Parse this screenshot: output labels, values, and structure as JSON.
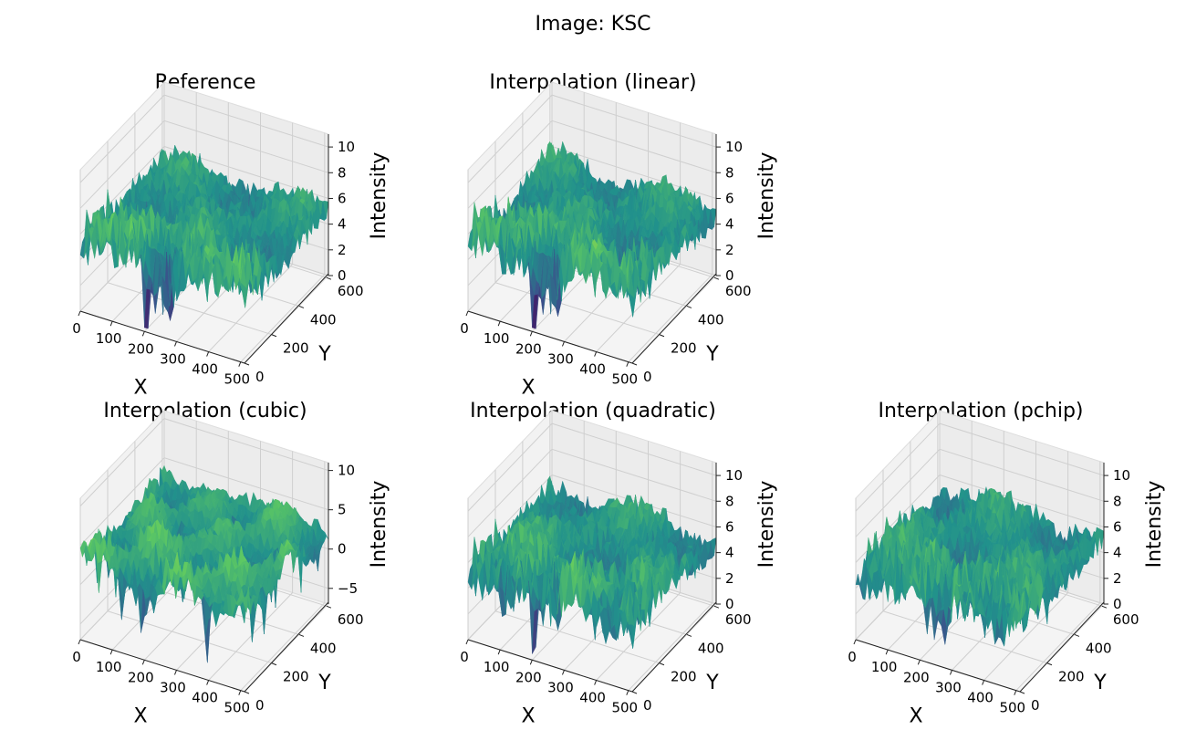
{
  "suptitle": "Image: KSC",
  "colormap": [
    "#440154",
    "#3b528b",
    "#21918c",
    "#5ec962",
    "#fde725"
  ],
  "pane_color": "#f2f2f2",
  "grid_color": "#cfcfcf",
  "chart_data": [
    {
      "type": "surface3d",
      "title": "Reference",
      "xlabel": "X",
      "ylabel": "Y",
      "zlabel": "Intensity",
      "xticks": [
        "0",
        "100",
        "200",
        "300",
        "400",
        "500"
      ],
      "yticks": [
        "0",
        "200",
        "400",
        "600"
      ],
      "zticks": [
        "0",
        "2",
        "4",
        "6",
        "8",
        "10"
      ],
      "xlim": [
        0,
        512
      ],
      "ylim": [
        0,
        614
      ],
      "zlim": [
        0,
        11
      ],
      "grid": true,
      "seed": 11
    },
    {
      "type": "surface3d",
      "title": "Interpolation (linear)",
      "xlabel": "X",
      "ylabel": "Y",
      "zlabel": "Intensity",
      "xticks": [
        "0",
        "100",
        "200",
        "300",
        "400",
        "500"
      ],
      "yticks": [
        "0",
        "200",
        "400",
        "600"
      ],
      "zticks": [
        "0",
        "2",
        "4",
        "6",
        "8",
        "10"
      ],
      "xlim": [
        0,
        512
      ],
      "ylim": [
        0,
        614
      ],
      "zlim": [
        0,
        11
      ],
      "grid": true,
      "seed": 11
    },
    {
      "type": "surface3d",
      "title": "Interpolation (cubic)",
      "xlabel": "X",
      "ylabel": "Y",
      "zlabel": "Intensity",
      "xticks": [
        "0",
        "100",
        "200",
        "300",
        "400",
        "500"
      ],
      "yticks": [
        "0",
        "200",
        "400",
        "600"
      ],
      "zticks": [
        "−5",
        "0",
        "5",
        "10"
      ],
      "xlim": [
        0,
        512
      ],
      "ylim": [
        0,
        614
      ],
      "zlim": [
        -7,
        11
      ],
      "grid": true,
      "seed": 29
    },
    {
      "type": "surface3d",
      "title": "Interpolation (quadratic)",
      "xlabel": "X",
      "ylabel": "Y",
      "zlabel": "Intensity",
      "xticks": [
        "0",
        "100",
        "200",
        "300",
        "400",
        "500"
      ],
      "yticks": [
        "0",
        "200",
        "400",
        "600"
      ],
      "zticks": [
        "0",
        "2",
        "4",
        "6",
        "8",
        "10"
      ],
      "xlim": [
        0,
        512
      ],
      "ylim": [
        0,
        614
      ],
      "zlim": [
        0,
        11
      ],
      "grid": true,
      "seed": 11
    },
    {
      "type": "surface3d",
      "title": "Interpolation (pchip)",
      "xlabel": "X",
      "ylabel": "Y",
      "zlabel": "Intensity",
      "xticks": [
        "0",
        "100",
        "200",
        "300",
        "400",
        "500"
      ],
      "yticks": [
        "0",
        "200",
        "400",
        "600"
      ],
      "zticks": [
        "0",
        "2",
        "4",
        "6",
        "8",
        "10"
      ],
      "xlim": [
        0,
        512
      ],
      "ylim": [
        0,
        614
      ],
      "zlim": [
        0,
        11
      ],
      "grid": true,
      "seed": 13
    }
  ]
}
